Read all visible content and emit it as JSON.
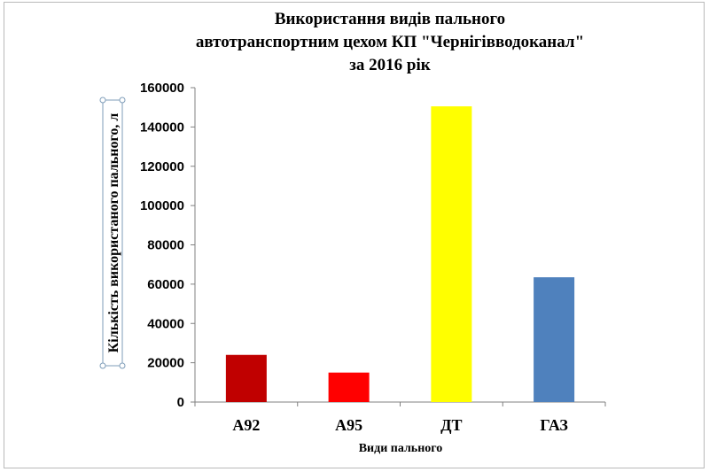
{
  "chart_data": {
    "type": "bar",
    "title_lines": [
      "Використання видів пального",
      "автотранспортним цехом КП \"Чернігівводоканал\"",
      "за 2016 рік"
    ],
    "xlabel": "Види пального",
    "ylabel": "Кількість використаного пального, л",
    "categories": [
      "А92",
      "А95",
      "ДТ",
      "ГАЗ"
    ],
    "values": [
      24000,
      15000,
      150500,
      63500
    ],
    "colors": [
      "#c00000",
      "#ff0000",
      "#ffff00",
      "#4f81bd"
    ],
    "ylim": [
      0,
      160000
    ],
    "yticks": [
      "0",
      "20000",
      "40000",
      "60000",
      "80000",
      "100000",
      "120000",
      "140000",
      "160000"
    ],
    "grid": false,
    "legend": "none"
  }
}
